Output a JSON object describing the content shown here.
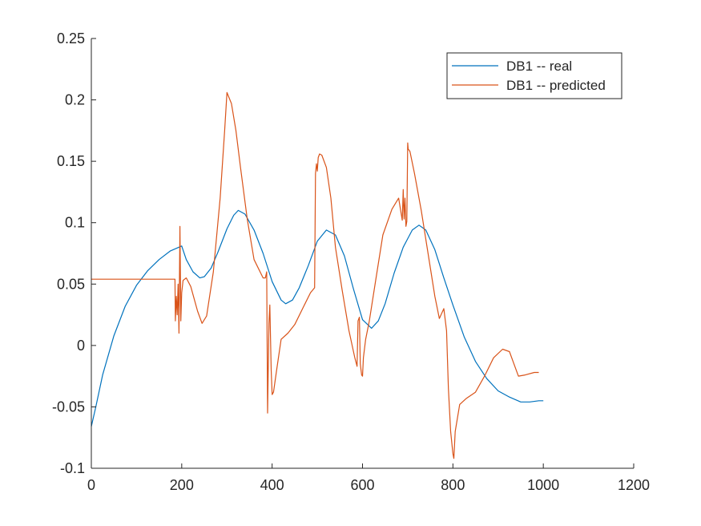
{
  "chart_data": {
    "type": "line",
    "title": "",
    "xlabel": "",
    "ylabel": "",
    "xlim": [
      0,
      1200
    ],
    "ylim": [
      -0.1,
      0.25
    ],
    "x_ticks": [
      0,
      200,
      400,
      600,
      800,
      1000,
      1200
    ],
    "x_tick_labels": [
      "0",
      "200",
      "400",
      "600",
      "800",
      "1000",
      "1200"
    ],
    "y_ticks": [
      -0.1,
      -0.05,
      0,
      0.05,
      0.1,
      0.15,
      0.2,
      0.25
    ],
    "y_tick_labels": [
      "-0.1",
      "-0.05",
      "0",
      "0.05",
      "0.1",
      "0.15",
      "0.2",
      "0.25"
    ],
    "grid": false,
    "legend_position": "top-right",
    "series": [
      {
        "name": "DB1 -- real",
        "color": "#0072BD",
        "x": [
          0,
          10,
          25,
          50,
          75,
          100,
          125,
          150,
          175,
          200,
          210,
          225,
          240,
          250,
          265,
          280,
          300,
          315,
          325,
          340,
          360,
          380,
          400,
          420,
          430,
          445,
          460,
          480,
          500,
          520,
          540,
          560,
          580,
          600,
          620,
          635,
          650,
          670,
          690,
          710,
          725,
          740,
          760,
          780,
          800,
          825,
          850,
          875,
          900,
          925,
          950,
          970,
          990,
          1000
        ],
        "y": [
          -0.066,
          -0.05,
          -0.024,
          0.008,
          0.032,
          0.049,
          0.061,
          0.07,
          0.077,
          0.081,
          0.07,
          0.06,
          0.055,
          0.056,
          0.063,
          0.076,
          0.095,
          0.106,
          0.11,
          0.107,
          0.094,
          0.075,
          0.052,
          0.037,
          0.034,
          0.037,
          0.047,
          0.065,
          0.085,
          0.094,
          0.09,
          0.073,
          0.046,
          0.021,
          0.014,
          0.02,
          0.034,
          0.059,
          0.08,
          0.094,
          0.098,
          0.094,
          0.078,
          0.055,
          0.033,
          0.007,
          -0.013,
          -0.027,
          -0.037,
          -0.042,
          -0.046,
          -0.046,
          -0.045,
          -0.045
        ]
      },
      {
        "name": "DB1 -- predicted",
        "color": "#D95319",
        "x": [
          0,
          100,
          185,
          186,
          188,
          190,
          192,
          194,
          196,
          198,
          200,
          203,
          210,
          220,
          235,
          245,
          255,
          270,
          285,
          295,
          300,
          310,
          320,
          330,
          345,
          360,
          380,
          385,
          388,
          390,
          393,
          395,
          398,
          400,
          403,
          410,
          420,
          435,
          450,
          470,
          485,
          494,
          496,
          498,
          500,
          502,
          505,
          510,
          520,
          530,
          540,
          555,
          570,
          583,
          588,
          590,
          593,
          595,
          598,
          600,
          602,
          607,
          615,
          630,
          645,
          665,
          680,
          688,
          690,
          692,
          694,
          696,
          698,
          700,
          701,
          705,
          715,
          730,
          745,
          760,
          770,
          780,
          786,
          790,
          795,
          800,
          802,
          805,
          815,
          830,
          850,
          870,
          890,
          910,
          925,
          935,
          945,
          960,
          980,
          990
        ],
        "y": [
          0.054,
          0.054,
          0.054,
          0.02,
          0.04,
          0.025,
          0.05,
          0.01,
          0.097,
          0.02,
          0.043,
          0.053,
          0.055,
          0.048,
          0.028,
          0.018,
          0.024,
          0.06,
          0.12,
          0.175,
          0.206,
          0.197,
          0.175,
          0.145,
          0.103,
          0.07,
          0.055,
          0.055,
          0.06,
          -0.055,
          0.018,
          0.033,
          -0.02,
          -0.04,
          -0.038,
          -0.02,
          0.005,
          0.01,
          0.017,
          0.032,
          0.043,
          0.047,
          0.14,
          0.148,
          0.142,
          0.153,
          0.156,
          0.155,
          0.145,
          0.12,
          0.08,
          0.045,
          0.012,
          -0.01,
          -0.017,
          0.02,
          0.023,
          -0.015,
          -0.024,
          -0.025,
          -0.01,
          0.005,
          0.02,
          0.055,
          0.09,
          0.111,
          0.12,
          0.102,
          0.127,
          0.103,
          0.12,
          0.097,
          0.101,
          0.165,
          0.16,
          0.158,
          0.14,
          0.11,
          0.075,
          0.04,
          0.022,
          0.03,
          0.012,
          -0.035,
          -0.07,
          -0.088,
          -0.092,
          -0.07,
          -0.048,
          -0.043,
          -0.038,
          -0.025,
          -0.01,
          -0.003,
          -0.005,
          -0.015,
          -0.025,
          -0.024,
          -0.022,
          -0.022
        ]
      }
    ]
  }
}
